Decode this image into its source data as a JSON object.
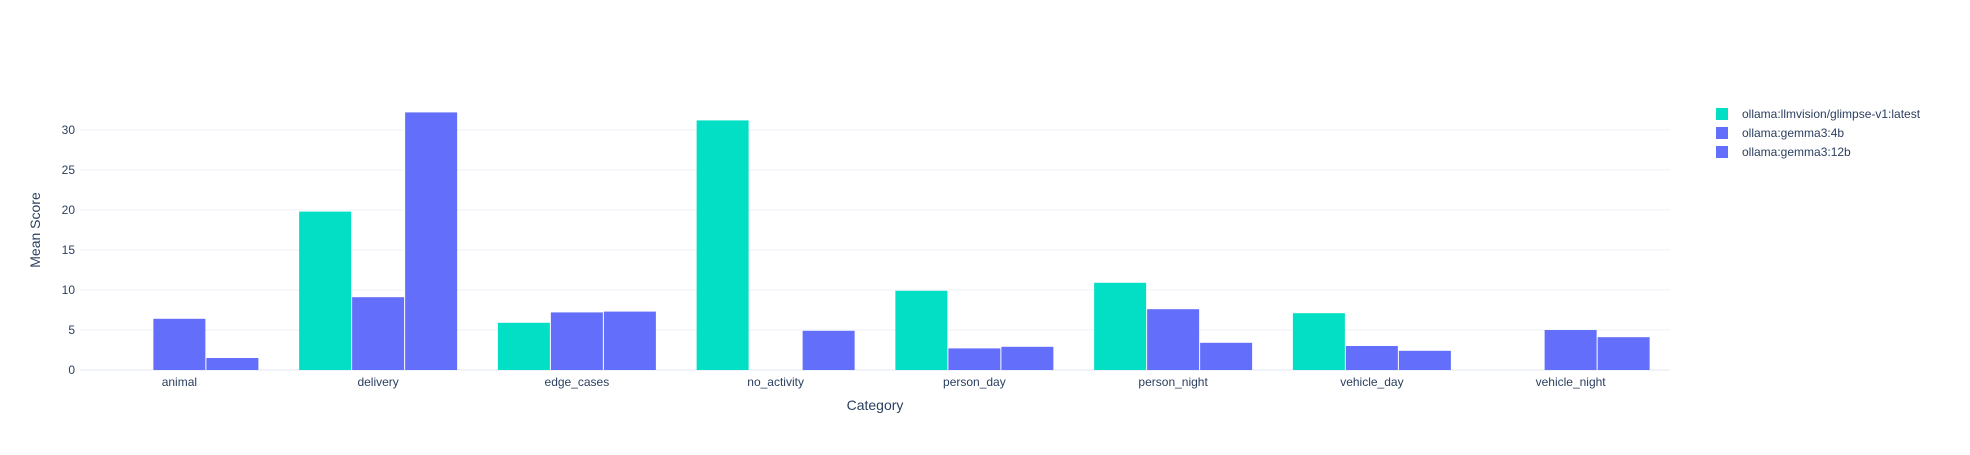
{
  "chart_data": {
    "type": "bar",
    "xlabel": "Category",
    "ylabel": "Mean Score",
    "ylim": [
      0,
      35
    ],
    "yticks": [
      0,
      5,
      10,
      15,
      20,
      25,
      30
    ],
    "grid": true,
    "legend_position": "right",
    "categories": [
      "animal",
      "delivery",
      "edge_cases",
      "no_activity",
      "person_day",
      "person_night",
      "vehicle_day",
      "vehicle_night"
    ],
    "series": [
      {
        "name": "ollama:llmvision/glimpse-v1:latest",
        "color": "#03dfc5",
        "values": [
          null,
          19.8,
          5.9,
          31.2,
          9.9,
          10.9,
          7.1,
          null
        ]
      },
      {
        "name": "ollama:gemma3:4b",
        "color": "#636efa",
        "values": [
          6.4,
          9.1,
          7.2,
          null,
          2.7,
          7.6,
          3.0,
          5.0
        ]
      },
      {
        "name": "ollama:gemma3:12b",
        "color": "#636efa",
        "values": [
          1.5,
          32.2,
          7.3,
          4.9,
          2.9,
          3.4,
          2.4,
          4.1
        ]
      }
    ]
  }
}
